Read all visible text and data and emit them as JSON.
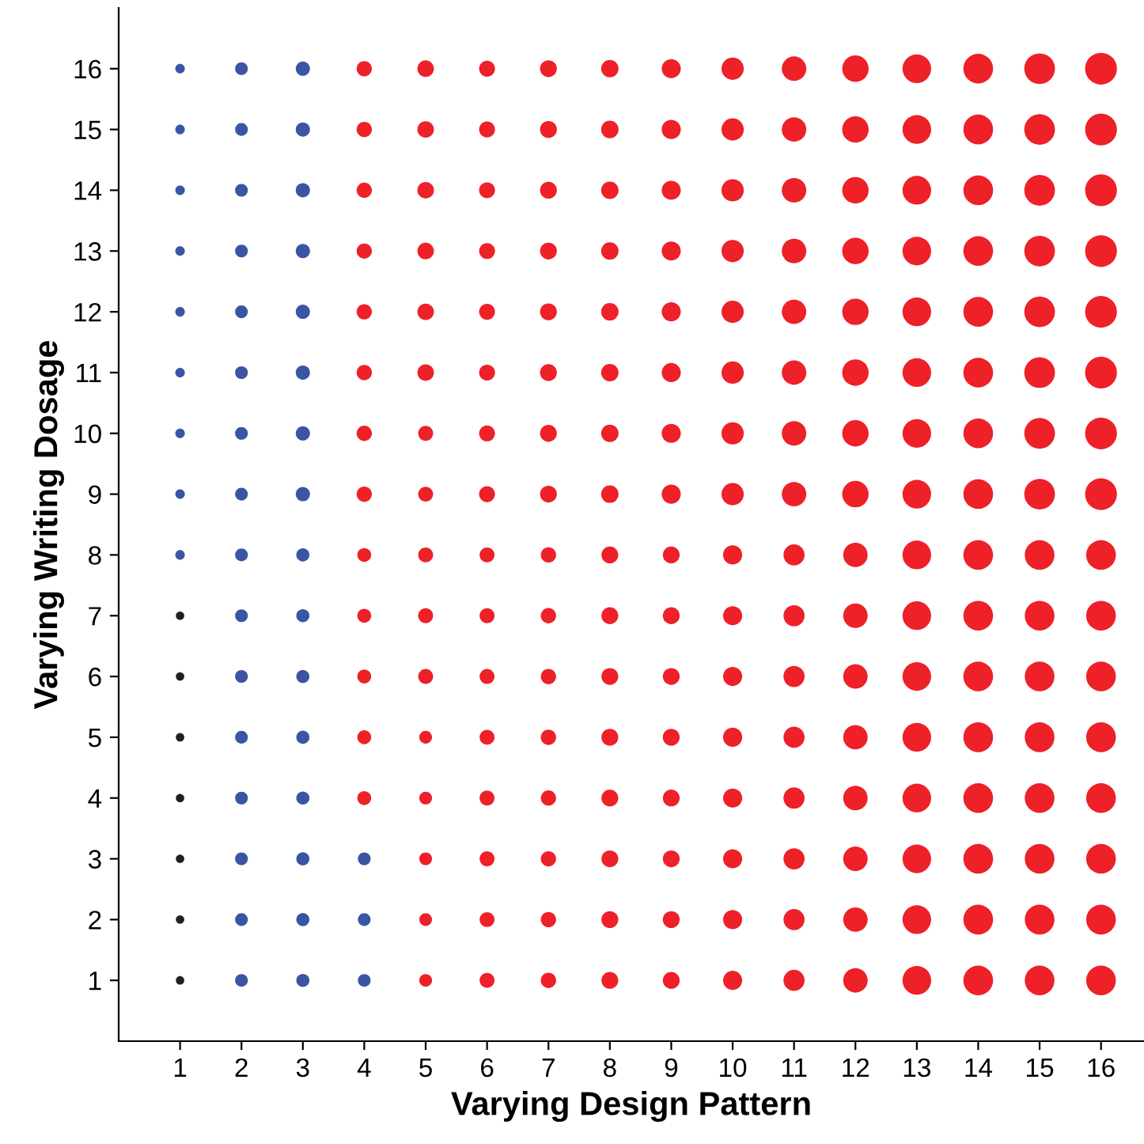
{
  "chart_data": {
    "type": "bubble",
    "xlabel": "Varying Design Pattern",
    "ylabel": "Varying Writing Dosage",
    "xlim": [
      0,
      16.7
    ],
    "ylim": [
      0,
      17
    ],
    "xticks": [
      1,
      2,
      3,
      4,
      5,
      6,
      7,
      8,
      9,
      10,
      11,
      12,
      13,
      14,
      15,
      16
    ],
    "yticks": [
      1,
      2,
      3,
      4,
      5,
      6,
      7,
      8,
      9,
      10,
      11,
      12,
      13,
      14,
      15,
      16
    ],
    "series": [
      {
        "color": "#231f20",
        "x": [
          1,
          1,
          1,
          1,
          1,
          1,
          1
        ],
        "values": [
          1,
          2,
          3,
          4,
          5,
          6,
          7
        ],
        "sizes": [
          0.07,
          0.07,
          0.07,
          0.07,
          0.07,
          0.07,
          0.07
        ]
      },
      {
        "color": "#3a55a4",
        "x": [
          1,
          1,
          1,
          1,
          1,
          1,
          1,
          1,
          1,
          2,
          2,
          2,
          2,
          2,
          2,
          2,
          2,
          2,
          2,
          2,
          2,
          2,
          2,
          2,
          2,
          3,
          3,
          3,
          3,
          3,
          3,
          3,
          3,
          3,
          3,
          3,
          3,
          3,
          3,
          3,
          3,
          4,
          4,
          4
        ],
        "values": [
          8,
          9,
          10,
          11,
          12,
          13,
          14,
          15,
          16,
          1,
          2,
          3,
          4,
          5,
          6,
          7,
          8,
          9,
          10,
          11,
          12,
          13,
          14,
          15,
          16,
          1,
          2,
          3,
          4,
          5,
          6,
          7,
          8,
          9,
          10,
          11,
          12,
          13,
          14,
          15,
          16,
          1,
          2,
          3
        ],
        "sizes": [
          0.09,
          0.09,
          0.09,
          0.09,
          0.09,
          0.09,
          0.09,
          0.09,
          0.09,
          0.16,
          0.16,
          0.16,
          0.16,
          0.16,
          0.16,
          0.16,
          0.16,
          0.16,
          0.16,
          0.16,
          0.16,
          0.16,
          0.16,
          0.16,
          0.16,
          0.17,
          0.17,
          0.17,
          0.17,
          0.17,
          0.17,
          0.17,
          0.17,
          0.2,
          0.2,
          0.2,
          0.2,
          0.2,
          0.2,
          0.2,
          0.2,
          0.16,
          0.16,
          0.16
        ]
      },
      {
        "color": "#ee2028",
        "x": [
          4,
          4,
          4,
          4,
          4,
          4,
          4,
          4,
          4,
          4,
          4,
          4,
          4,
          5,
          5,
          5,
          5,
          5,
          5,
          5,
          5,
          5,
          5,
          5,
          5,
          5,
          5,
          5,
          5,
          6,
          6,
          6,
          6,
          6,
          6,
          6,
          6,
          6,
          6,
          6,
          6,
          6,
          6,
          6,
          6,
          7,
          7,
          7,
          7,
          7,
          7,
          7,
          7,
          7,
          7,
          7,
          7,
          7,
          7,
          7,
          7,
          8,
          8,
          8,
          8,
          8,
          8,
          8,
          8,
          8,
          8,
          8,
          8,
          8,
          8,
          8,
          8,
          9,
          9,
          9,
          9,
          9,
          9,
          9,
          9,
          9,
          9,
          9,
          9,
          9,
          9,
          9,
          9,
          10,
          10,
          10,
          10,
          10,
          10,
          10,
          10,
          10,
          10,
          10,
          10,
          10,
          10,
          10,
          10,
          11,
          11,
          11,
          11,
          11,
          11,
          11,
          11,
          11,
          11,
          11,
          11,
          11,
          11,
          11,
          11,
          12,
          12,
          12,
          12,
          12,
          12,
          12,
          12,
          12,
          12,
          12,
          12,
          12,
          12,
          12,
          12,
          13,
          13,
          13,
          13,
          13,
          13,
          13,
          13,
          13,
          13,
          13,
          13,
          13,
          13,
          13,
          13,
          14,
          14,
          14,
          14,
          14,
          14,
          14,
          14,
          14,
          14,
          14,
          14,
          14,
          14,
          14,
          14,
          15,
          15,
          15,
          15,
          15,
          15,
          15,
          15,
          15,
          15,
          15,
          15,
          15,
          15,
          15,
          15,
          16,
          16,
          16,
          16,
          16,
          16,
          16,
          16,
          16,
          16,
          16,
          16,
          16,
          16,
          16,
          16
        ],
        "values": [
          4,
          5,
          6,
          7,
          8,
          9,
          10,
          11,
          12,
          13,
          14,
          15,
          16,
          1,
          2,
          3,
          4,
          5,
          6,
          7,
          8,
          9,
          10,
          11,
          12,
          13,
          14,
          15,
          16,
          1,
          2,
          3,
          4,
          5,
          6,
          7,
          8,
          9,
          10,
          11,
          12,
          13,
          14,
          15,
          16,
          1,
          2,
          3,
          4,
          5,
          6,
          7,
          8,
          9,
          10,
          11,
          12,
          13,
          14,
          15,
          16,
          1,
          2,
          3,
          4,
          5,
          6,
          7,
          8,
          9,
          10,
          11,
          12,
          13,
          14,
          15,
          16,
          1,
          2,
          3,
          4,
          5,
          6,
          7,
          8,
          9,
          10,
          11,
          12,
          13,
          14,
          15,
          16,
          1,
          2,
          3,
          4,
          5,
          6,
          7,
          8,
          9,
          10,
          11,
          12,
          13,
          14,
          15,
          16,
          1,
          2,
          3,
          4,
          5,
          6,
          7,
          8,
          9,
          10,
          11,
          12,
          13,
          14,
          15,
          16,
          1,
          2,
          3,
          4,
          5,
          6,
          7,
          8,
          9,
          10,
          11,
          12,
          13,
          14,
          15,
          16,
          1,
          2,
          3,
          4,
          5,
          6,
          7,
          8,
          9,
          10,
          11,
          12,
          13,
          14,
          15,
          16,
          1,
          2,
          3,
          4,
          5,
          6,
          7,
          8,
          9,
          10,
          11,
          12,
          13,
          14,
          15,
          16,
          1,
          2,
          3,
          4,
          5,
          6,
          7,
          8,
          9,
          10,
          11,
          12,
          13,
          14,
          15,
          16,
          1,
          2,
          3,
          4,
          5,
          6,
          7,
          8,
          9,
          10,
          11,
          12,
          13,
          14,
          15,
          16
        ],
        "sizes": [
          0.19,
          0.19,
          0.19,
          0.19,
          0.19,
          0.23,
          0.23,
          0.23,
          0.23,
          0.23,
          0.23,
          0.23,
          0.23,
          0.16,
          0.16,
          0.16,
          0.16,
          0.16,
          0.22,
          0.22,
          0.22,
          0.22,
          0.22,
          0.27,
          0.27,
          0.27,
          0.27,
          0.27,
          0.27,
          0.22,
          0.22,
          0.22,
          0.22,
          0.22,
          0.22,
          0.22,
          0.22,
          0.25,
          0.25,
          0.25,
          0.25,
          0.25,
          0.25,
          0.25,
          0.25,
          0.23,
          0.23,
          0.23,
          0.23,
          0.23,
          0.23,
          0.23,
          0.23,
          0.28,
          0.28,
          0.28,
          0.28,
          0.28,
          0.28,
          0.28,
          0.28,
          0.28,
          0.28,
          0.28,
          0.28,
          0.28,
          0.28,
          0.28,
          0.28,
          0.3,
          0.3,
          0.3,
          0.3,
          0.3,
          0.3,
          0.3,
          0.3,
          0.28,
          0.28,
          0.28,
          0.28,
          0.28,
          0.28,
          0.28,
          0.28,
          0.36,
          0.36,
          0.36,
          0.36,
          0.36,
          0.36,
          0.36,
          0.36,
          0.36,
          0.36,
          0.36,
          0.36,
          0.36,
          0.36,
          0.36,
          0.36,
          0.49,
          0.49,
          0.49,
          0.49,
          0.49,
          0.49,
          0.49,
          0.49,
          0.44,
          0.44,
          0.44,
          0.44,
          0.44,
          0.44,
          0.44,
          0.44,
          0.59,
          0.59,
          0.59,
          0.59,
          0.59,
          0.59,
          0.59,
          0.59,
          0.59,
          0.59,
          0.59,
          0.59,
          0.59,
          0.59,
          0.59,
          0.59,
          0.69,
          0.69,
          0.69,
          0.69,
          0.69,
          0.69,
          0.69,
          0.69,
          0.81,
          0.81,
          0.81,
          0.81,
          0.81,
          0.81,
          0.81,
          0.81,
          0.81,
          0.81,
          0.81,
          0.81,
          0.81,
          0.81,
          0.81,
          0.81,
          0.87,
          0.87,
          0.87,
          0.87,
          0.87,
          0.87,
          0.87,
          0.87,
          0.87,
          0.87,
          0.87,
          0.87,
          0.87,
          0.87,
          0.87,
          0.87,
          0.87,
          0.87,
          0.87,
          0.87,
          0.87,
          0.87,
          0.87,
          0.87,
          0.93,
          0.93,
          0.93,
          0.93,
          0.93,
          0.93,
          0.93,
          0.93,
          0.87,
          0.87,
          0.87,
          0.87,
          0.87,
          0.87,
          0.87,
          0.87,
          1,
          1,
          1,
          1,
          1,
          1,
          1,
          1
        ]
      }
    ]
  }
}
